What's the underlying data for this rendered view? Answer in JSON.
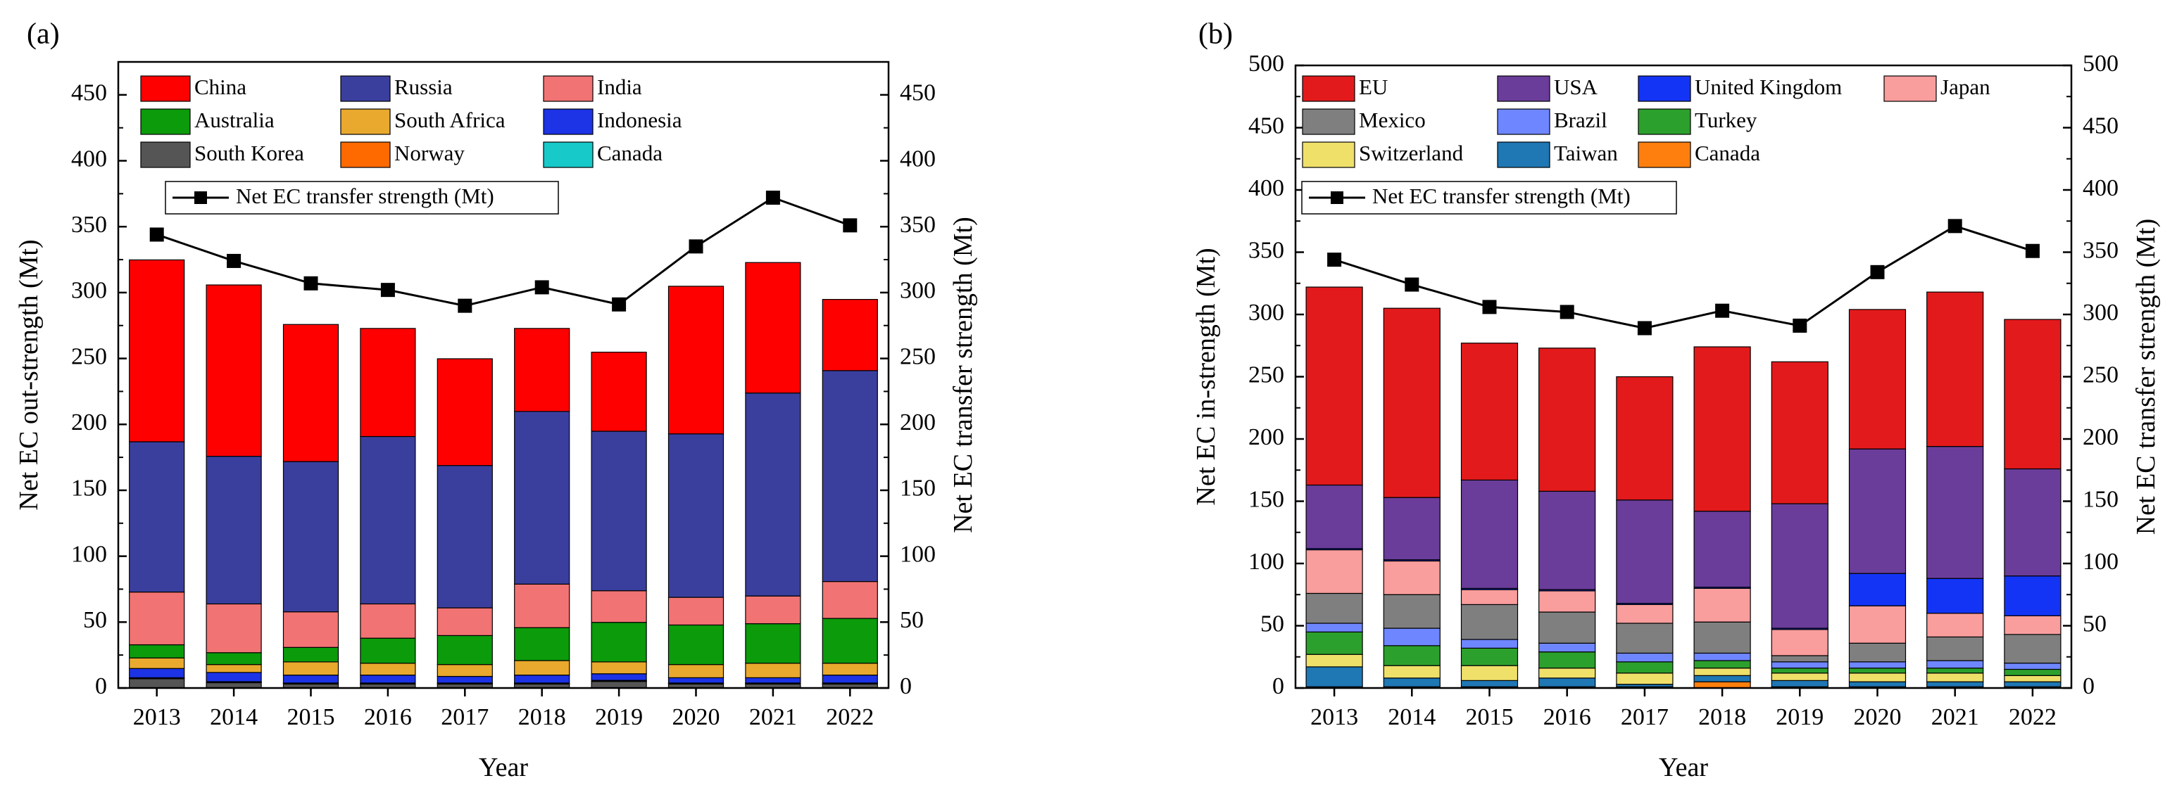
{
  "chart_data": [
    {
      "panel_label": "(a)",
      "type": "bar",
      "stacked": true,
      "categories": [
        "2013",
        "2014",
        "2015",
        "2016",
        "2017",
        "2018",
        "2019",
        "2020",
        "2021",
        "2022"
      ],
      "xlabel": "Year",
      "ylabel": "Net EC out-strength (Mt)",
      "y2label": "Net EC transfer strength (Mt)",
      "ylim": [
        0,
        475
      ],
      "yticks": [
        0,
        50,
        100,
        150,
        200,
        250,
        300,
        350,
        400,
        450
      ],
      "legend_position": "top-left, inside plot",
      "series": [
        {
          "name": "South Korea",
          "color": "#555555",
          "values": [
            7,
            4,
            3,
            3,
            3,
            3,
            5,
            3,
            3,
            3
          ]
        },
        {
          "name": "Norway",
          "color": "#FF6A00",
          "values": [
            0.5,
            0.5,
            0.5,
            0.5,
            0.5,
            0.5,
            0.5,
            0.5,
            0.5,
            0.5
          ]
        },
        {
          "name": "Canada",
          "color": "#17C9C9",
          "values": [
            0.3,
            0.3,
            0.3,
            0.3,
            0.3,
            0.3,
            0.3,
            0.3,
            0.3,
            0.3
          ]
        },
        {
          "name": "Indonesia",
          "color": "#1C33E6",
          "values": [
            7,
            7,
            6,
            6,
            5,
            6,
            5,
            4,
            4,
            6
          ]
        },
        {
          "name": "South Africa",
          "color": "#E8A92E",
          "values": [
            8,
            6,
            10,
            9,
            9,
            11,
            9,
            10,
            11,
            9
          ]
        },
        {
          "name": "Australia",
          "color": "#0B9B0B",
          "values": [
            10,
            9,
            11,
            19,
            22,
            25,
            30,
            30,
            30,
            34
          ]
        },
        {
          "name": "India",
          "color": "#F27373",
          "values": [
            40,
            37,
            27,
            26,
            21,
            33,
            24,
            21,
            21,
            28
          ]
        },
        {
          "name": "Russia",
          "color": "#3A3F9E",
          "values": [
            114,
            112,
            114,
            127,
            108,
            131,
            121,
            124,
            154,
            160
          ]
        },
        {
          "name": "China",
          "color": "#FF0000",
          "values": [
            138,
            130,
            104,
            82,
            81,
            63,
            60,
            112,
            99,
            54
          ]
        }
      ],
      "legend_order": [
        "China",
        "Russia",
        "India",
        "Australia",
        "South Africa",
        "Indonesia",
        "South Korea",
        "Norway",
        "Canada"
      ],
      "line_series": {
        "name": "Net EC transfer strength (Mt)",
        "color": "#000000",
        "marker": "square",
        "values": [
          344,
          324,
          307,
          302,
          290,
          304,
          291,
          335,
          372,
          351
        ]
      }
    },
    {
      "panel_label": "(b)",
      "type": "bar",
      "stacked": true,
      "categories": [
        "2013",
        "2014",
        "2015",
        "2016",
        "2017",
        "2018",
        "2019",
        "2020",
        "2021",
        "2022"
      ],
      "xlabel": "Year",
      "ylabel": "Net EC in-strength (Mt)",
      "y2label": "Net EC transfer strength (Mt)",
      "ylim": [
        0,
        500
      ],
      "yticks": [
        0,
        50,
        100,
        150,
        200,
        250,
        300,
        350,
        400,
        450,
        500
      ],
      "legend_position": "top-left, inside plot",
      "series": [
        {
          "name": "Canada",
          "color": "#FF7F0E",
          "values": [
            1,
            1,
            1,
            1,
            1,
            5,
            1,
            1,
            1,
            1
          ]
        },
        {
          "name": "Taiwan",
          "color": "#1F77B4",
          "values": [
            16,
            7,
            5,
            7,
            2,
            5,
            5,
            4,
            4,
            4
          ]
        },
        {
          "name": "Switzerland",
          "color": "#EFE06A",
          "values": [
            10,
            10,
            12,
            8,
            9,
            6,
            6,
            7,
            7,
            5
          ]
        },
        {
          "name": "Turkey",
          "color": "#2CA02C",
          "values": [
            18,
            16,
            14,
            13,
            9,
            6,
            4,
            4,
            4,
            5
          ]
        },
        {
          "name": "Brazil",
          "color": "#6E86FF",
          "values": [
            7,
            14,
            7,
            7,
            7,
            6,
            5,
            5,
            6,
            5
          ]
        },
        {
          "name": "Mexico",
          "color": "#7F7F7F",
          "values": [
            24,
            27,
            28,
            25,
            24,
            25,
            5,
            15,
            19,
            23
          ]
        },
        {
          "name": "Japan",
          "color": "#F99D9D",
          "values": [
            35,
            27,
            12,
            17,
            15,
            27,
            21,
            30,
            19,
            15
          ]
        },
        {
          "name": "United Kingdom",
          "color": "#1434F5",
          "values": [
            1,
            1,
            1,
            1,
            1,
            1,
            1,
            26,
            28,
            32
          ]
        },
        {
          "name": "USA",
          "color": "#6A3D9A",
          "values": [
            51,
            50,
            87,
            79,
            83,
            61,
            100,
            100,
            106,
            86
          ]
        },
        {
          "name": "EU",
          "color": "#E31A1C",
          "values": [
            159,
            152,
            110,
            115,
            99,
            132,
            114,
            112,
            124,
            120
          ]
        }
      ],
      "legend_order": [
        "EU",
        "USA",
        "United Kingdom",
        "Japan",
        "Mexico",
        "Brazil",
        "Turkey",
        "Switzerland",
        "Taiwan",
        "Canada"
      ],
      "line_series": {
        "name": "Net EC transfer strength (Mt)",
        "color": "#000000",
        "marker": "square",
        "values": [
          344,
          324,
          306,
          302,
          289,
          303,
          291,
          334,
          371,
          351
        ]
      }
    }
  ]
}
